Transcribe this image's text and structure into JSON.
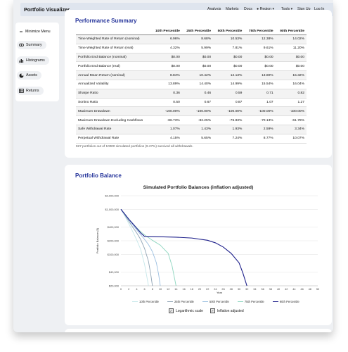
{
  "navbar": {
    "brand": "Portfolio Visualizer",
    "links": [
      "Analysis",
      "Markets",
      "Docs",
      "Region",
      "Tools",
      "Sign Up",
      "Log In"
    ]
  },
  "sidebar": {
    "items": [
      {
        "label": "Minimize Menu",
        "icon": "minus-icon"
      },
      {
        "label": "Summary",
        "icon": "eye-icon"
      },
      {
        "label": "Histograms",
        "icon": "bar-chart-icon"
      },
      {
        "label": "Assets",
        "icon": "pie-chart-icon"
      },
      {
        "label": "Returns",
        "icon": "table-icon"
      }
    ]
  },
  "performance": {
    "title": "Performance Summary",
    "columns": [
      "",
      "10th Percentile",
      "25th Percentile",
      "50th Percentile",
      "75th Percentile",
      "90th Percentile"
    ],
    "rows": [
      [
        "Time Weighted Rate of Return (nominal)",
        "6.96%",
        "8.68%",
        "10.53%",
        "12.38%",
        "14.02%"
      ],
      [
        "Time Weighted Rate of Return (real)",
        "4.32%",
        "5.99%",
        "7.81%",
        "9.61%",
        "11.20%"
      ],
      [
        "Portfolio End Balance (nominal)",
        "$0.00",
        "$0.00",
        "$0.00",
        "$0.00",
        "$0.00"
      ],
      [
        "Portfolio End Balance (real)",
        "$0.00",
        "$0.00",
        "$0.00",
        "$0.00",
        "$0.00"
      ],
      [
        "Annual Mean Return (nominal)",
        "8.84%",
        "10.42%",
        "12.13%",
        "13.80%",
        "15.32%"
      ],
      [
        "Annualized Volatility",
        "13.89%",
        "14.40%",
        "14.99%",
        "15.54%",
        "16.04%"
      ],
      [
        "Sharpe Ratio",
        "0.36",
        "0.46",
        "0.59",
        "0.71",
        "0.82"
      ],
      [
        "Sortino Ratio",
        "0.50",
        "0.67",
        "0.87",
        "1.07",
        "1.27"
      ],
      [
        "Maximum Drawdown",
        "-100.00%",
        "-100.00%",
        "-100.00%",
        "-100.00%",
        "-100.00%"
      ],
      [
        "Maximum Drawdown Excluding Cashflows",
        "-86.73%",
        "-82.25%",
        "-76.83%",
        "-70.13%",
        "-61.78%"
      ],
      [
        "Safe Withdrawal Rate",
        "1.07%",
        "1.43%",
        "1.93%",
        "2.59%",
        "3.34%"
      ],
      [
        "Perpetual Withdrawal Rate",
        "4.15%",
        "5.65%",
        "7.24%",
        "8.77%",
        "10.07%"
      ]
    ],
    "note": "927 portfolios out of 10000 simulated portfolios (9.27%) survived all withdrawals."
  },
  "balance": {
    "title": "Portfolio Balance",
    "options": [
      {
        "label": "Logarithmic scale",
        "checked": true
      },
      {
        "label": "Inflation adjusted",
        "checked": true
      }
    ]
  },
  "chart_data": {
    "type": "line",
    "title": "Simulated Portfolio Balances (inflation adjusted)",
    "xlabel": "Year",
    "ylabel": "Portfolio Balance ($)",
    "y_scale": "log",
    "ylim": [
      20000,
      2000000
    ],
    "xlim": [
      0,
      50
    ],
    "x_ticks": [
      0,
      2,
      4,
      6,
      8,
      10,
      12,
      14,
      16,
      18,
      20,
      22,
      24,
      26,
      28,
      30,
      32,
      34,
      36,
      38,
      40,
      42,
      44,
      46,
      48,
      50
    ],
    "y_ticks": [
      20000,
      40000,
      100000,
      200000,
      400000,
      1000000,
      2000000
    ],
    "y_tick_labels": [
      "$20,000",
      "$40,000",
      "$100,000",
      "$200,000",
      "$400,000",
      "$1,000,000",
      "$2,000,000"
    ],
    "grid": true,
    "legend_position": "bottom",
    "series": [
      {
        "name": "10th Percentile",
        "color": "#c6e7ea",
        "x": [
          0,
          1,
          2,
          3,
          4,
          5,
          6,
          6.5,
          7
        ],
        "y": [
          1000000,
          700000,
          480000,
          320000,
          210000,
          130000,
          60000,
          35000,
          20000
        ]
      },
      {
        "name": "25th Percentile",
        "color": "#8fa4b5",
        "x": [
          0,
          1,
          2,
          3,
          4,
          5,
          6,
          7,
          7.6,
          8
        ],
        "y": [
          1000000,
          740000,
          540000,
          400000,
          300000,
          215000,
          135000,
          70000,
          35000,
          20000
        ]
      },
      {
        "name": "50th Percentile",
        "color": "#9bbfe0",
        "x": [
          0,
          1,
          2,
          3,
          4,
          5,
          6,
          7,
          8,
          9,
          9.6,
          10
        ],
        "y": [
          1000000,
          760000,
          580000,
          450000,
          350000,
          275000,
          215000,
          165000,
          115000,
          65000,
          35000,
          20000
        ]
      },
      {
        "name": "75th Percentile",
        "color": "#8ed6c0",
        "x": [
          0,
          1,
          2,
          3,
          4,
          5,
          6,
          8,
          10,
          12,
          13,
          14
        ],
        "y": [
          1000000,
          780000,
          610000,
          485000,
          390000,
          320000,
          270000,
          205000,
          160000,
          105000,
          55000,
          20000
        ]
      },
      {
        "name": "90th Percentile",
        "color": "#1c1e8a",
        "x": [
          0,
          1,
          2,
          3,
          4,
          5,
          6,
          10,
          14,
          18,
          22,
          24,
          26,
          28,
          30,
          31,
          32
        ],
        "y": [
          1000000,
          780000,
          600000,
          480000,
          380000,
          300000,
          250000,
          245000,
          240000,
          230000,
          205000,
          180000,
          145000,
          105000,
          65000,
          38000,
          20000
        ]
      }
    ]
  }
}
